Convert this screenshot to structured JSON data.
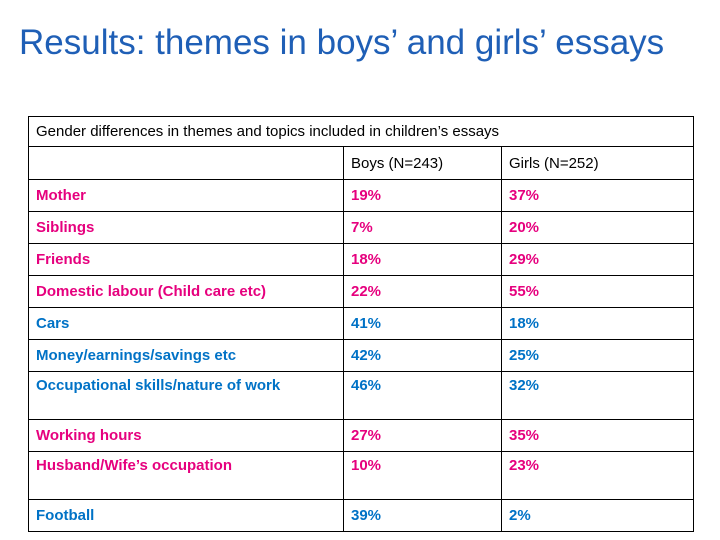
{
  "slide": {
    "title": "Results: themes in boys’ and girls’ essays"
  },
  "colors": {
    "title": "#1f5fb6",
    "girls_theme": "#e6007e",
    "boys_theme": "#0072c6",
    "text": "#000000",
    "border": "#000000"
  },
  "table": {
    "caption": "Gender differences in themes and topics included in children’s essays",
    "headers": [
      "",
      "Boys (N=243)",
      "Girls (N=252)"
    ],
    "rows": [
      {
        "theme": "Mother",
        "boys": "19%",
        "girls": "37%",
        "color": "#e6007e"
      },
      {
        "theme": "Siblings",
        "boys": "7%",
        "girls": "20%",
        "color": "#e6007e"
      },
      {
        "theme": "Friends",
        "boys": "18%",
        "girls": "29%",
        "color": "#e6007e"
      },
      {
        "theme": "Domestic labour (Child care etc)",
        "boys": "22%",
        "girls": "55%",
        "color": "#e6007e"
      },
      {
        "theme": "Cars",
        "boys": "41%",
        "girls": "18%",
        "color": "#0072c6"
      },
      {
        "theme": "Money/earnings/savings etc",
        "boys": "42%",
        "girls": "25%",
        "color": "#0072c6"
      },
      {
        "theme": "Occupational skills/nature of work",
        "boys": "46%",
        "girls": "32%",
        "color": "#0072c6"
      },
      {
        "theme": "Working hours",
        "boys": "27%",
        "girls": "35%",
        "color": "#e6007e"
      },
      {
        "theme": "Husband/Wife’s occupation",
        "boys": "10%",
        "girls": "23%",
        "color": "#e6007e"
      },
      {
        "theme": "Football",
        "boys": "39%",
        "girls": "2%",
        "color": "#0072c6"
      }
    ]
  }
}
